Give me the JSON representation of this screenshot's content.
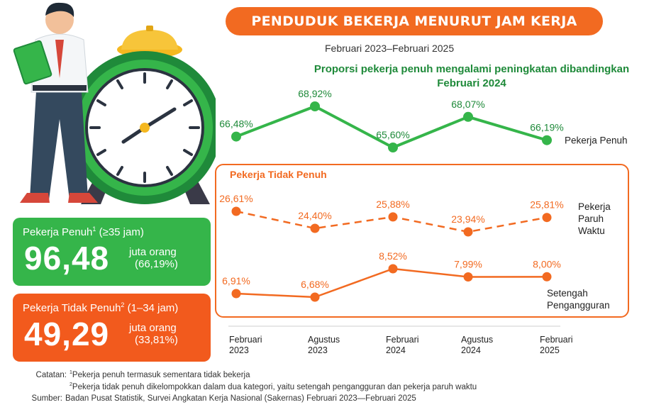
{
  "title": "PENDUDUK BEKERJA MENURUT JAM KERJA",
  "period": "Februari 2023–Februari 2025",
  "headline": "Proporsi pekerja penuh mengalami peningkatan dibandingkan Februari 2024",
  "panel_title": "Pekerja Tidak Penuh",
  "cards": {
    "full": {
      "label": "Pekerja Penuh",
      "sup": "1",
      "range": " (≥35  jam)",
      "value": "96,48",
      "unit": "juta orang",
      "pct": "(66,19%)"
    },
    "partial": {
      "label": "Pekerja Tidak Penuh",
      "sup": "2",
      "range": " (1–34 jam)",
      "value": "49,29",
      "unit": "juta orang",
      "pct": "(33,81%)"
    }
  },
  "notes": {
    "catatan_label": "Catatan:",
    "note1_sup": "1",
    "note1": "Pekerja penuh termasuk sementara tidak bekerja",
    "note2_sup": "2",
    "note2": "Pekerja tidak penuh dikelompokkan dalam dua kategori, yaitu setengah pengangguran dan pekerja paruh waktu",
    "sumber_label": "Sumber:",
    "sumber": "Badan Pusat Statistik, Survei Angkatan Kerja Nasional (Sakernas) Februari 2023—Februari 2025"
  },
  "colors": {
    "green": "#35b54a",
    "orange": "#f26a21",
    "dark_green": "#1f8a3a"
  },
  "chart_data": {
    "type": "line",
    "categories": [
      [
        "Februari",
        "2023"
      ],
      [
        "Agustus",
        "2023"
      ],
      [
        "Februari",
        "2024"
      ],
      [
        "Agustus",
        "2024"
      ],
      [
        "Februari",
        "2025"
      ]
    ],
    "series": [
      {
        "name": "Pekerja Penuh",
        "values": [
          66.48,
          68.92,
          65.6,
          68.07,
          66.19
        ],
        "labels": [
          "66,48%",
          "68,92%",
          "65,60%",
          "68,07%",
          "66,19%"
        ],
        "color": "#35b54a",
        "style": "solid"
      },
      {
        "name": "Pekerja Paruh Waktu",
        "values": [
          26.61,
          24.4,
          25.88,
          23.94,
          25.81
        ],
        "labels": [
          "26,61%",
          "24,40%",
          "25,88%",
          "23,94%",
          "25,81%"
        ],
        "color": "#f26a21",
        "style": "dashed"
      },
      {
        "name": "Setengah Pengangguran",
        "values": [
          6.91,
          6.68,
          8.52,
          7.99,
          8.0
        ],
        "labels": [
          "6,91%",
          "6,68%",
          "8,52%",
          "7,99%",
          "8,00%"
        ],
        "color": "#f26a21",
        "style": "solid"
      }
    ],
    "series_label_lines": [
      [
        "Pekerja Penuh"
      ],
      [
        "Pekerja",
        "Paruh",
        "Waktu"
      ],
      [
        "Setengah",
        "Pengangguran"
      ]
    ]
  }
}
